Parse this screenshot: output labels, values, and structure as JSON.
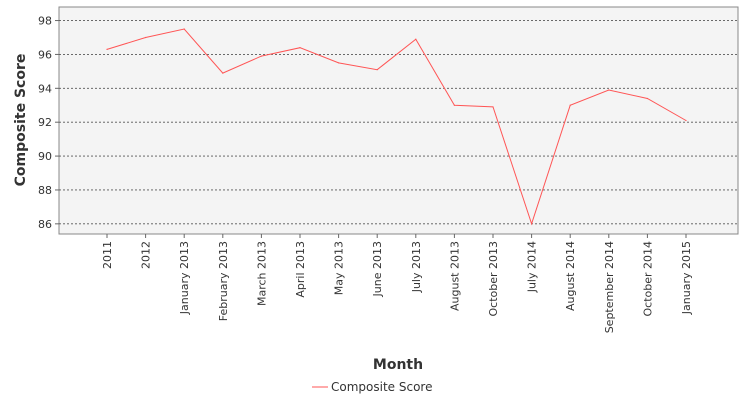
{
  "chart_data": {
    "type": "line",
    "title": "",
    "xlabel": "Month",
    "ylabel": "Composite Score",
    "categories": [
      "2011",
      "2012",
      "January 2013",
      "February 2013",
      "March 2013",
      "April 2013",
      "May 2013",
      "June 2013",
      "July 2013",
      "August 2013",
      "October 2013",
      "July 2014",
      "August 2014",
      "September 2014",
      "October 2014",
      "January 2015"
    ],
    "series": [
      {
        "name": "Composite Score",
        "color": "#ff5555",
        "values": [
          96.3,
          97.0,
          97.5,
          94.9,
          95.9,
          96.4,
          95.5,
          95.1,
          96.9,
          93.0,
          92.9,
          86.0,
          93.0,
          93.9,
          93.4,
          92.1
        ]
      }
    ],
    "yticks": [
      86,
      88,
      90,
      92,
      94,
      96,
      98
    ],
    "ylim": [
      85.4,
      98.8
    ],
    "grid": true,
    "legend_position": "bottom-center",
    "plot_background": "#f4f4f4"
  }
}
